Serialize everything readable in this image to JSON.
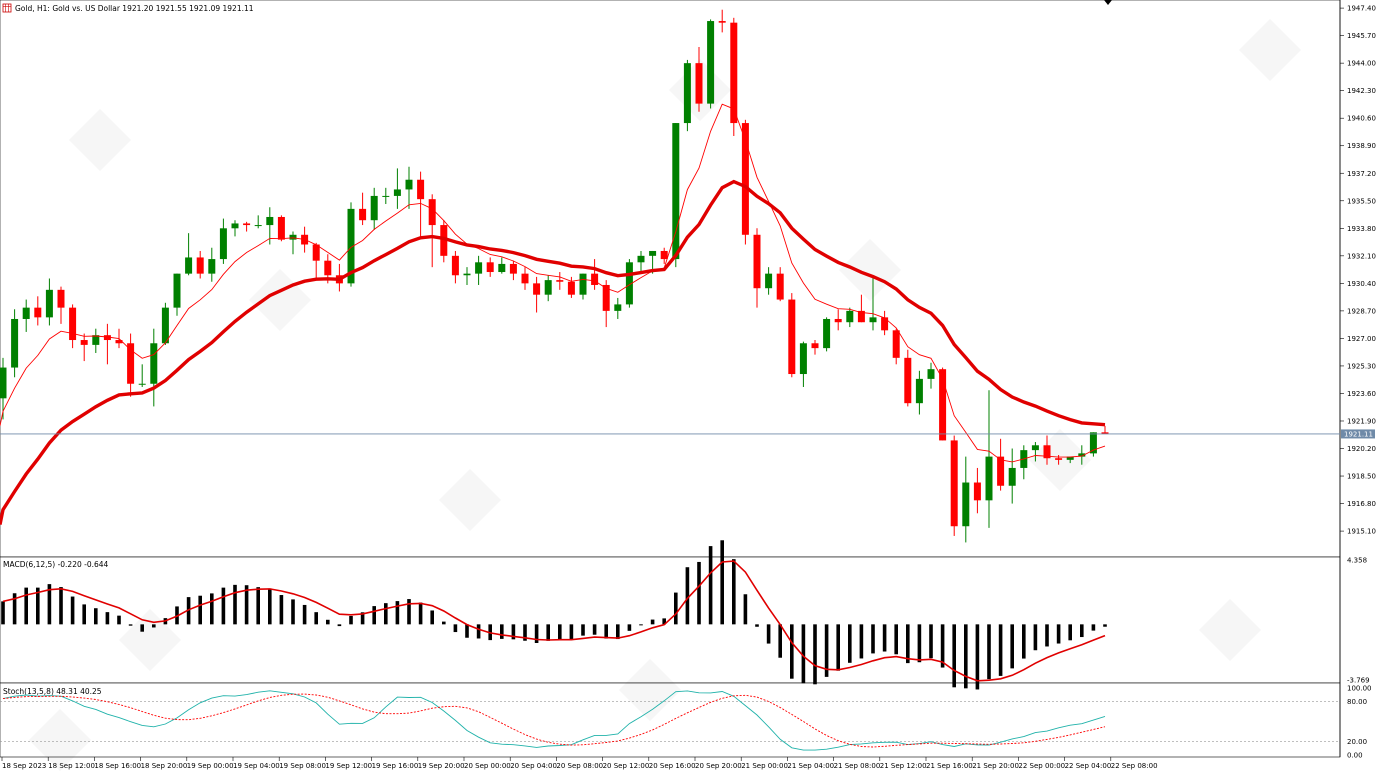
{
  "header": {
    "symbol_text": "Gold, H1:  Gold vs. US Dollar  1921.20 1921.55 1921.09 1921.11",
    "last_price_label": "1921.11"
  },
  "colors": {
    "bull": "#008000",
    "bear": "#ff0000",
    "ma": "#ff0000",
    "price_line": "#6f8aa8"
  },
  "chart_data": [
    {
      "type": "candlestick",
      "title": "Gold, H1:  Gold vs. US Dollar  1921.20 1921.55 1921.09 1921.11",
      "ylim": [
        1913.5,
        1947.9
      ],
      "y_ticks": [
        "1947.40",
        "1945.70",
        "1944.00",
        "1942.30",
        "1940.60",
        "1938.90",
        "1937.20",
        "1935.50",
        "1933.80",
        "1932.10",
        "1930.40",
        "1928.70",
        "1927.00",
        "1925.30",
        "1923.60",
        "1921.90",
        "1920.20",
        "1918.50",
        "1916.80",
        "1915.10"
      ],
      "x_labels": [
        "18 Sep 2023",
        "18 Sep 12:00",
        "18 Sep 16:00",
        "18 Sep 20:00",
        "19 Sep 00:00",
        "19 Sep 04:00",
        "19 Sep 08:00",
        "19 Sep 12:00",
        "19 Sep 16:00",
        "19 Sep 20:00",
        "20 Sep 00:00",
        "20 Sep 04:00",
        "20 Sep 08:00",
        "20 Sep 12:00",
        "20 Sep 16:00",
        "20 Sep 20:00",
        "21 Sep 00:00",
        "21 Sep 04:00",
        "21 Sep 08:00",
        "21 Sep 12:00",
        "21 Sep 16:00",
        "21 Sep 20:00",
        "22 Sep 00:00",
        "22 Sep 04:00",
        "22 Sep 08:00"
      ],
      "ohlc": [
        [
          1923.3,
          1925.8,
          1922.0,
          1925.2
        ],
        [
          1925.2,
          1928.8,
          1924.6,
          1928.2
        ],
        [
          1928.2,
          1929.4,
          1927.4,
          1928.9
        ],
        [
          1928.9,
          1929.6,
          1927.8,
          1928.3
        ],
        [
          1928.3,
          1930.7,
          1927.8,
          1930.0
        ],
        [
          1930.0,
          1930.2,
          1927.9,
          1928.9
        ],
        [
          1928.9,
          1929.1,
          1926.4,
          1926.9
        ],
        [
          1926.9,
          1927.3,
          1925.6,
          1926.6
        ],
        [
          1926.6,
          1927.6,
          1926.1,
          1927.2
        ],
        [
          1927.2,
          1927.9,
          1925.4,
          1926.9
        ],
        [
          1926.9,
          1927.6,
          1926.4,
          1926.7
        ],
        [
          1926.7,
          1927.3,
          1923.4,
          1924.2
        ],
        [
          1924.2,
          1925.4,
          1924.0,
          1924.2
        ],
        [
          1924.2,
          1927.6,
          1922.8,
          1926.7
        ],
        [
          1926.7,
          1929.2,
          1926.6,
          1928.9
        ],
        [
          1928.9,
          1931.0,
          1928.4,
          1931.0
        ],
        [
          1931.0,
          1933.5,
          1930.9,
          1932.0
        ],
        [
          1932.0,
          1932.4,
          1930.7,
          1931.0
        ],
        [
          1931.0,
          1932.6,
          1930.5,
          1931.9
        ],
        [
          1931.9,
          1934.4,
          1931.6,
          1933.8
        ],
        [
          1933.8,
          1934.3,
          1933.3,
          1934.1
        ],
        [
          1934.1,
          1934.2,
          1933.6,
          1934.0
        ],
        [
          1934.0,
          1934.6,
          1933.8,
          1934.0
        ],
        [
          1934.0,
          1935.1,
          1932.8,
          1934.5
        ],
        [
          1934.5,
          1934.6,
          1933.0,
          1933.1
        ],
        [
          1933.1,
          1933.6,
          1932.2,
          1933.4
        ],
        [
          1933.4,
          1933.9,
          1932.3,
          1932.8
        ],
        [
          1932.8,
          1932.9,
          1930.7,
          1931.8
        ],
        [
          1931.8,
          1932.2,
          1930.4,
          1930.9
        ],
        [
          1930.9,
          1931.6,
          1929.9,
          1930.4
        ],
        [
          1930.4,
          1935.4,
          1930.2,
          1935.0
        ],
        [
          1935.0,
          1936.0,
          1934.0,
          1934.3
        ],
        [
          1934.3,
          1936.3,
          1933.7,
          1935.8
        ],
        [
          1935.8,
          1936.3,
          1935.3,
          1935.8
        ],
        [
          1935.8,
          1937.5,
          1935.0,
          1936.2
        ],
        [
          1936.2,
          1937.6,
          1935.0,
          1936.8
        ],
        [
          1936.8,
          1937.3,
          1933.2,
          1935.6
        ],
        [
          1935.6,
          1935.9,
          1931.4,
          1934.0
        ],
        [
          1934.0,
          1934.3,
          1931.7,
          1932.1
        ],
        [
          1932.1,
          1932.4,
          1930.4,
          1930.9
        ],
        [
          1930.9,
          1931.4,
          1930.3,
          1931.0
        ],
        [
          1931.0,
          1932.1,
          1930.3,
          1931.7
        ],
        [
          1931.7,
          1932.0,
          1930.8,
          1931.1
        ],
        [
          1931.1,
          1932.0,
          1931.0,
          1931.6
        ],
        [
          1931.6,
          1931.8,
          1930.6,
          1931.0
        ],
        [
          1931.0,
          1931.4,
          1930.0,
          1930.4
        ],
        [
          1930.4,
          1930.8,
          1928.6,
          1929.7
        ],
        [
          1929.7,
          1930.9,
          1929.3,
          1930.6
        ],
        [
          1930.6,
          1931.1,
          1930.0,
          1930.5
        ],
        [
          1930.5,
          1930.8,
          1929.5,
          1929.7
        ],
        [
          1929.7,
          1931.0,
          1929.4,
          1931.0
        ],
        [
          1931.0,
          1931.9,
          1930.0,
          1930.3
        ],
        [
          1930.3,
          1930.6,
          1927.7,
          1928.7
        ],
        [
          1928.7,
          1929.5,
          1928.2,
          1929.1
        ],
        [
          1929.1,
          1931.9,
          1928.9,
          1931.7
        ],
        [
          1931.7,
          1932.4,
          1931.1,
          1932.1
        ],
        [
          1932.1,
          1932.4,
          1931.0,
          1932.4
        ],
        [
          1932.4,
          1932.6,
          1931.6,
          1931.9
        ],
        [
          1931.9,
          1940.3,
          1931.4,
          1940.3
        ],
        [
          1940.3,
          1944.2,
          1939.8,
          1944.0
        ],
        [
          1944.0,
          1945.0,
          1941.0,
          1941.5
        ],
        [
          1941.5,
          1946.7,
          1941.2,
          1946.6
        ],
        [
          1946.6,
          1947.3,
          1945.9,
          1946.5
        ],
        [
          1946.5,
          1946.8,
          1939.5,
          1940.3
        ],
        [
          1940.3,
          1940.5,
          1932.8,
          1933.4
        ],
        [
          1933.4,
          1933.8,
          1928.9,
          1930.1
        ],
        [
          1930.1,
          1931.4,
          1929.7,
          1931.0
        ],
        [
          1931.0,
          1931.4,
          1929.3,
          1929.4
        ],
        [
          1929.4,
          1929.8,
          1924.6,
          1924.8
        ],
        [
          1924.8,
          1926.8,
          1924.0,
          1926.7
        ],
        [
          1926.7,
          1926.9,
          1926.0,
          1926.4
        ],
        [
          1926.4,
          1928.3,
          1926.2,
          1928.2
        ],
        [
          1928.2,
          1928.8,
          1927.5,
          1928.0
        ],
        [
          1928.0,
          1928.9,
          1927.7,
          1928.7
        ],
        [
          1928.7,
          1929.7,
          1928.0,
          1928.0
        ],
        [
          1928.0,
          1930.8,
          1927.5,
          1928.3
        ],
        [
          1928.3,
          1928.7,
          1927.2,
          1927.5
        ],
        [
          1927.5,
          1927.6,
          1925.4,
          1925.8
        ],
        [
          1925.8,
          1926.3,
          1922.8,
          1923.0
        ],
        [
          1923.0,
          1925.0,
          1922.3,
          1924.5
        ],
        [
          1924.5,
          1925.5,
          1923.9,
          1925.1
        ],
        [
          1925.1,
          1925.2,
          1920.7,
          1920.7
        ],
        [
          1920.7,
          1921.0,
          1914.8,
          1915.4
        ],
        [
          1915.4,
          1919.7,
          1914.4,
          1918.1
        ],
        [
          1918.1,
          1919.0,
          1916.2,
          1917.0
        ],
        [
          1917.0,
          1923.8,
          1915.3,
          1919.7
        ],
        [
          1919.7,
          1920.8,
          1917.6,
          1917.9
        ],
        [
          1917.9,
          1920.2,
          1916.8,
          1919.0
        ],
        [
          1919.0,
          1920.4,
          1918.3,
          1920.1
        ],
        [
          1920.1,
          1920.6,
          1919.4,
          1920.4
        ],
        [
          1920.4,
          1921.0,
          1919.2,
          1919.6
        ],
        [
          1919.6,
          1919.8,
          1919.2,
          1919.5
        ],
        [
          1919.5,
          1919.7,
          1919.3,
          1919.7
        ],
        [
          1919.7,
          1920.4,
          1919.2,
          1919.9
        ],
        [
          1919.9,
          1921.2,
          1919.7,
          1921.2
        ],
        [
          1921.2,
          1921.6,
          1921.1,
          1921.1
        ]
      ]
    },
    {
      "type": "bar",
      "title": "MACD(6,12,5) -0.220 -0.644",
      "ylim": [
        -3.769,
        4.358
      ],
      "y_ticks": [
        "4.358",
        "-3.769"
      ]
    },
    {
      "type": "line",
      "title": "Stoch(13,5,8) 48.31 40.25",
      "ylim": [
        0,
        100
      ],
      "y_ticks": [
        "100.00",
        "80.00",
        "20.00",
        "0.00"
      ]
    }
  ]
}
